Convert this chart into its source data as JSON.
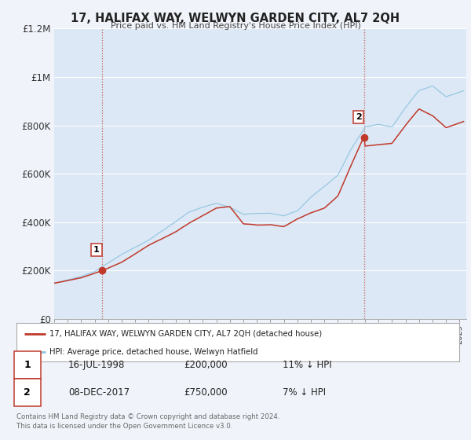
{
  "title": "17, HALIFAX WAY, WELWYN GARDEN CITY, AL7 2QH",
  "subtitle": "Price paid vs. HM Land Registry's House Price Index (HPI)",
  "background_color": "#f0f4fa",
  "plot_bg_color": "#dce8f5",
  "red_line_label": "17, HALIFAX WAY, WELWYN GARDEN CITY, AL7 2QH (detached house)",
  "blue_line_label": "HPI: Average price, detached house, Welwyn Hatfield",
  "ylim": [
    0,
    1200000
  ],
  "yticks": [
    0,
    200000,
    400000,
    600000,
    800000,
    1000000,
    1200000
  ],
  "ytick_labels": [
    "£0",
    "£200K",
    "£400K",
    "£600K",
    "£800K",
    "£1M",
    "£1.2M"
  ],
  "xmin": 1995.0,
  "xmax": 2025.5,
  "sale1_x": 1998.54,
  "sale1_y": 200000,
  "sale2_x": 2017.93,
  "sale2_y": 750000,
  "sale1_date": "16-JUL-1998",
  "sale1_price": "£200,000",
  "sale1_hpi": "11% ↓ HPI",
  "sale2_date": "08-DEC-2017",
  "sale2_price": "£750,000",
  "sale2_hpi": "7% ↓ HPI",
  "footer_line1": "Contains HM Land Registry data © Crown copyright and database right 2024.",
  "footer_line2": "This data is licensed under the Open Government Licence v3.0.",
  "hpi_anchors_x": [
    1995,
    1997,
    1998,
    2000,
    2002,
    2004,
    2005,
    2006,
    2007,
    2008,
    2009,
    2010,
    2011,
    2012,
    2013,
    2014,
    2015,
    2016,
    2017,
    2017.93,
    2018,
    2019,
    2020,
    2021,
    2022,
    2023,
    2024,
    2025.3
  ],
  "hpi_anchors_y": [
    148000,
    175000,
    195000,
    265000,
    325000,
    400000,
    440000,
    460000,
    475000,
    460000,
    430000,
    435000,
    435000,
    425000,
    445000,
    500000,
    545000,
    590000,
    700000,
    780000,
    790000,
    800000,
    790000,
    870000,
    940000,
    960000,
    915000,
    940000
  ],
  "red_anchors_x": [
    1995,
    1997,
    1998.54,
    2000,
    2002,
    2004,
    2005,
    2007,
    2008,
    2009,
    2010,
    2011,
    2012,
    2013,
    2014,
    2015,
    2016,
    2017,
    2017.93,
    2018,
    2019,
    2020,
    2021,
    2022,
    2023,
    2024,
    2025.3
  ],
  "red_anchors_y": [
    148000,
    170000,
    200000,
    235000,
    305000,
    360000,
    395000,
    455000,
    462000,
    390000,
    385000,
    385000,
    378000,
    410000,
    435000,
    455000,
    505000,
    635000,
    750000,
    710000,
    715000,
    720000,
    795000,
    862000,
    835000,
    785000,
    810000
  ]
}
